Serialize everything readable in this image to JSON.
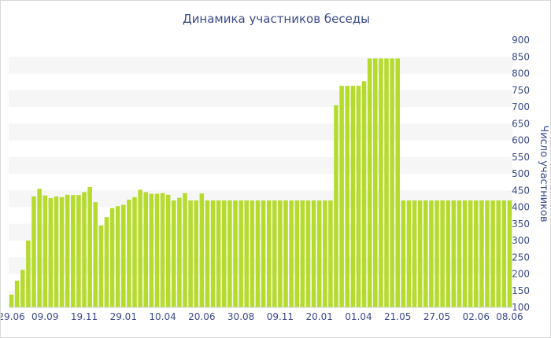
{
  "chart_data": {
    "type": "bar",
    "title": "Динамика участников беседы",
    "xlabel": "",
    "ylabel": "Число участников",
    "ylim": [
      100,
      900
    ],
    "yticks": [
      100,
      150,
      200,
      250,
      300,
      350,
      400,
      450,
      500,
      550,
      600,
      650,
      700,
      750,
      800,
      850,
      900
    ],
    "xtick_labels": [
      {
        "index": 0,
        "label": "29.06"
      },
      {
        "index": 6,
        "label": "09.09"
      },
      {
        "index": 13,
        "label": "19.11"
      },
      {
        "index": 20,
        "label": "29.01"
      },
      {
        "index": 27,
        "label": "10.04"
      },
      {
        "index": 34,
        "label": "20.06"
      },
      {
        "index": 41,
        "label": "30.08"
      },
      {
        "index": 48,
        "label": "09.11"
      },
      {
        "index": 55,
        "label": "20.01"
      },
      {
        "index": 62,
        "label": "01.04"
      },
      {
        "index": 69,
        "label": "21.05"
      },
      {
        "index": 76,
        "label": "27.05"
      },
      {
        "index": 83,
        "label": "02.06"
      },
      {
        "index": 89,
        "label": "08.06"
      }
    ],
    "values": [
      138,
      180,
      212,
      300,
      432,
      455,
      435,
      427,
      432,
      430,
      437,
      436,
      436,
      445,
      460,
      415,
      345,
      370,
      397,
      403,
      407,
      422,
      430,
      452,
      445,
      440,
      440,
      442,
      437,
      420,
      428,
      442,
      420,
      420,
      441,
      420,
      420,
      420,
      420,
      420,
      420,
      420,
      420,
      420,
      420,
      420,
      420,
      420,
      420,
      420,
      420,
      420,
      420,
      420,
      420,
      420,
      420,
      420,
      705,
      763,
      763,
      763,
      763,
      777,
      845,
      845,
      845,
      845,
      845,
      845,
      420,
      420,
      420,
      420,
      420,
      420,
      420,
      420,
      420,
      420,
      420,
      420,
      420,
      420,
      420,
      420,
      420,
      420,
      420,
      420
    ],
    "colors": {
      "bar": "#b5dc2d",
      "band": "#f6f6f6",
      "text": "#3a4a8a",
      "axis": "#d0d0d0"
    },
    "grid": true
  }
}
